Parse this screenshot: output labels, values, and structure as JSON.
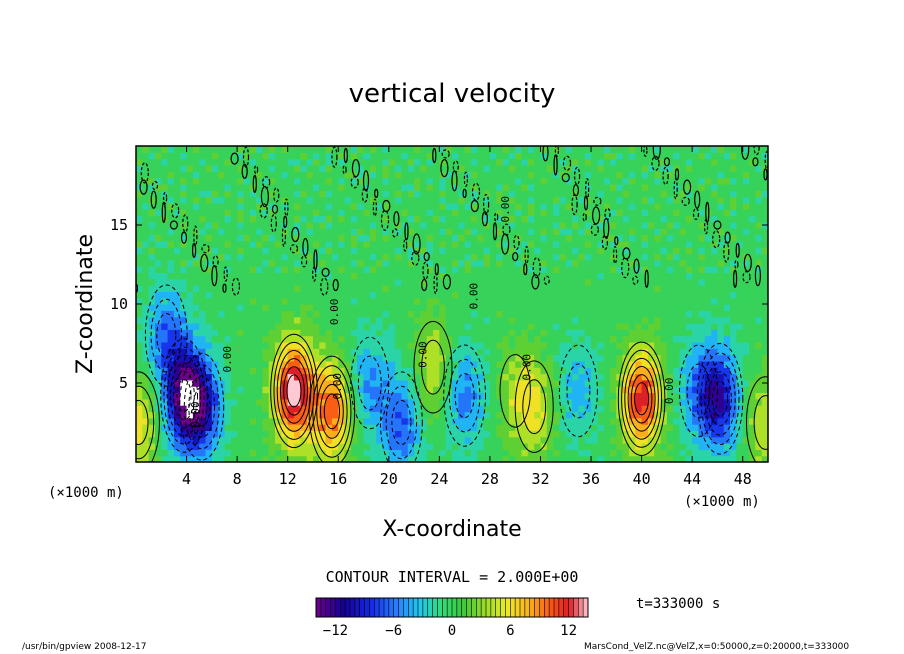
{
  "chart_data": {
    "type": "heatmap",
    "title": "vertical velocity",
    "xlabel": "X-coordinate",
    "ylabel": "Z-coordinate",
    "x_unit": "(×1000 m)",
    "y_unit": "(×1000 m)",
    "xlim": [
      0,
      50
    ],
    "ylim": [
      0,
      20
    ],
    "x_ticks": [
      4,
      8,
      12,
      16,
      20,
      24,
      28,
      32,
      36,
      40,
      44,
      48
    ],
    "y_ticks": [
      5,
      10,
      15
    ],
    "contour_interval_text": "CONTOUR INTERVAL = 2.000E+00",
    "contour_label": "0.00",
    "time_text": "t=333000 s",
    "colorbar": {
      "min": -14,
      "max": 14,
      "tick_values": [
        -12,
        -6,
        0,
        6,
        12
      ],
      "tick_labels": [
        "−12",
        "−6",
        "0",
        "6",
        "12"
      ]
    },
    "features": [
      {
        "x": 3.8,
        "z": 4.2,
        "w": -12
      },
      {
        "x": 5.2,
        "z": 3.5,
        "w": -9
      },
      {
        "x": 2.4,
        "z": 8.0,
        "w": -6
      },
      {
        "x": 12.5,
        "z": 4.5,
        "w": 14
      },
      {
        "x": 15.5,
        "z": 3.2,
        "w": 10
      },
      {
        "x": 18.5,
        "z": 5.0,
        "w": -5
      },
      {
        "x": 21.0,
        "z": 2.5,
        "w": -7
      },
      {
        "x": 23.5,
        "z": 6.0,
        "w": 5
      },
      {
        "x": 26.0,
        "z": 4.2,
        "w": -6
      },
      {
        "x": 30.0,
        "z": 4.5,
        "w": 3
      },
      {
        "x": 31.5,
        "z": 3.5,
        "w": 5
      },
      {
        "x": 35.0,
        "z": 4.5,
        "w": -4
      },
      {
        "x": 40.0,
        "z": 4.0,
        "w": 12
      },
      {
        "x": 44.5,
        "z": 4.5,
        "w": -5
      },
      {
        "x": 46.2,
        "z": 4.0,
        "w": -10
      },
      {
        "x": 49.8,
        "z": 2.5,
        "w": 5
      },
      {
        "x": 0.2,
        "z": 2.5,
        "w": 6
      }
    ]
  },
  "footer": {
    "left": "/usr/bin/gpview   2008-12-17",
    "right": "MarsCond_VelZ.nc@VelZ,x=0:50000,z=0:20000,t=333000"
  }
}
